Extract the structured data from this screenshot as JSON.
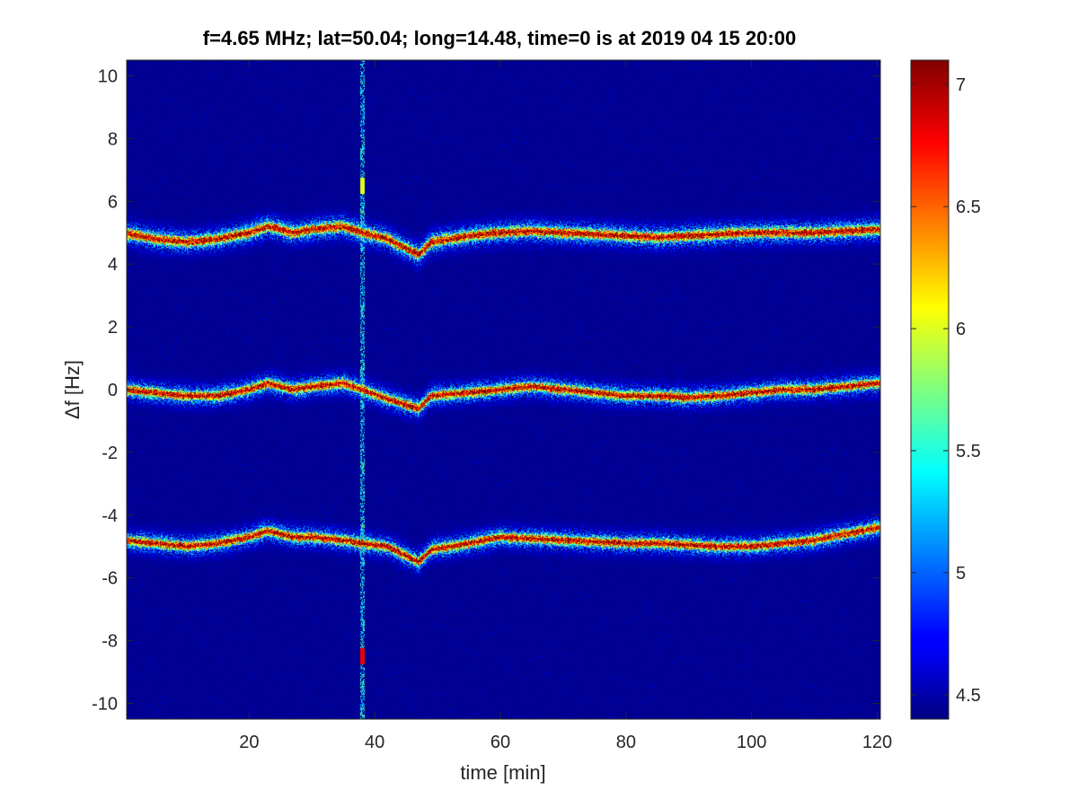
{
  "chart_data": {
    "type": "heatmap",
    "title": "f=4.65 MHz;  lat=50.04; long=14.48, time=0 is at 2019 04 15 20:00",
    "xlabel": "time [min]",
    "ylabel": "Δf [Hz]",
    "xlim": [
      0.5,
      120.5
    ],
    "ylim": [
      -10.5,
      10.5
    ],
    "xticks": [
      20,
      40,
      60,
      80,
      100,
      120
    ],
    "xtick_labels": [
      "20",
      "40",
      "60",
      "80",
      "100",
      "120"
    ],
    "yticks": [
      10,
      8,
      6,
      4,
      2,
      0,
      -2,
      -4,
      -6,
      -8,
      -10
    ],
    "ytick_labels": [
      "10",
      "8",
      "6",
      "4",
      "2",
      "0",
      "-2",
      "-4",
      "-6",
      "-8",
      "-10"
    ],
    "colormap": "jet",
    "clim": [
      4.4,
      7.1
    ],
    "colorbar": {
      "ticks": [
        7,
        6.5,
        6,
        5.5,
        5,
        4.5
      ],
      "tick_labels": [
        "7",
        "6.5",
        "6",
        "5.5",
        "5",
        "4.5"
      ]
    },
    "background_value": 4.45,
    "bands": [
      {
        "name": "upper",
        "time": [
          0,
          5,
          10,
          15,
          20,
          23,
          27,
          30,
          35,
          38,
          42,
          47,
          49,
          55,
          60,
          65,
          70,
          75,
          80,
          85,
          90,
          95,
          100,
          105,
          110,
          115,
          120
        ],
        "freq": [
          5.0,
          4.8,
          4.7,
          4.8,
          5.0,
          5.2,
          5.0,
          5.1,
          5.2,
          5.0,
          4.8,
          4.3,
          4.7,
          4.9,
          5.0,
          5.05,
          5.0,
          4.95,
          4.9,
          4.85,
          4.9,
          4.95,
          5.0,
          5.0,
          5.0,
          5.05,
          5.1
        ],
        "peak": 7.0,
        "spread": 0.35
      },
      {
        "name": "center",
        "time": [
          0,
          5,
          10,
          15,
          20,
          23,
          27,
          30,
          35,
          38,
          42,
          47,
          49,
          55,
          60,
          65,
          70,
          75,
          80,
          85,
          90,
          95,
          100,
          105,
          110,
          115,
          120
        ],
        "freq": [
          0.0,
          -0.1,
          -0.2,
          -0.2,
          0.0,
          0.2,
          0.0,
          0.1,
          0.2,
          0.0,
          -0.3,
          -0.6,
          -0.2,
          -0.1,
          0.0,
          0.1,
          0.0,
          -0.1,
          -0.2,
          -0.2,
          -0.25,
          -0.2,
          -0.1,
          0.0,
          0.0,
          0.1,
          0.2
        ],
        "peak": 7.0,
        "spread": 0.32
      },
      {
        "name": "lower",
        "time": [
          0,
          5,
          10,
          15,
          20,
          23,
          27,
          30,
          35,
          38,
          42,
          47,
          49,
          55,
          60,
          65,
          70,
          75,
          80,
          85,
          90,
          95,
          100,
          105,
          110,
          115,
          120
        ],
        "freq": [
          -4.8,
          -4.9,
          -5.0,
          -4.9,
          -4.7,
          -4.5,
          -4.7,
          -4.7,
          -4.8,
          -4.9,
          -5.0,
          -5.5,
          -5.1,
          -4.9,
          -4.7,
          -4.75,
          -4.8,
          -4.85,
          -4.9,
          -4.9,
          -4.95,
          -5.0,
          -5.0,
          -4.9,
          -4.8,
          -4.6,
          -4.4
        ],
        "peak": 7.0,
        "spread": 0.32
      }
    ],
    "vertical_streak": {
      "time": 38,
      "features": [
        {
          "freq": 6.5,
          "value": 6.0
        },
        {
          "freq": -8.5,
          "value": 6.8
        }
      ]
    }
  }
}
